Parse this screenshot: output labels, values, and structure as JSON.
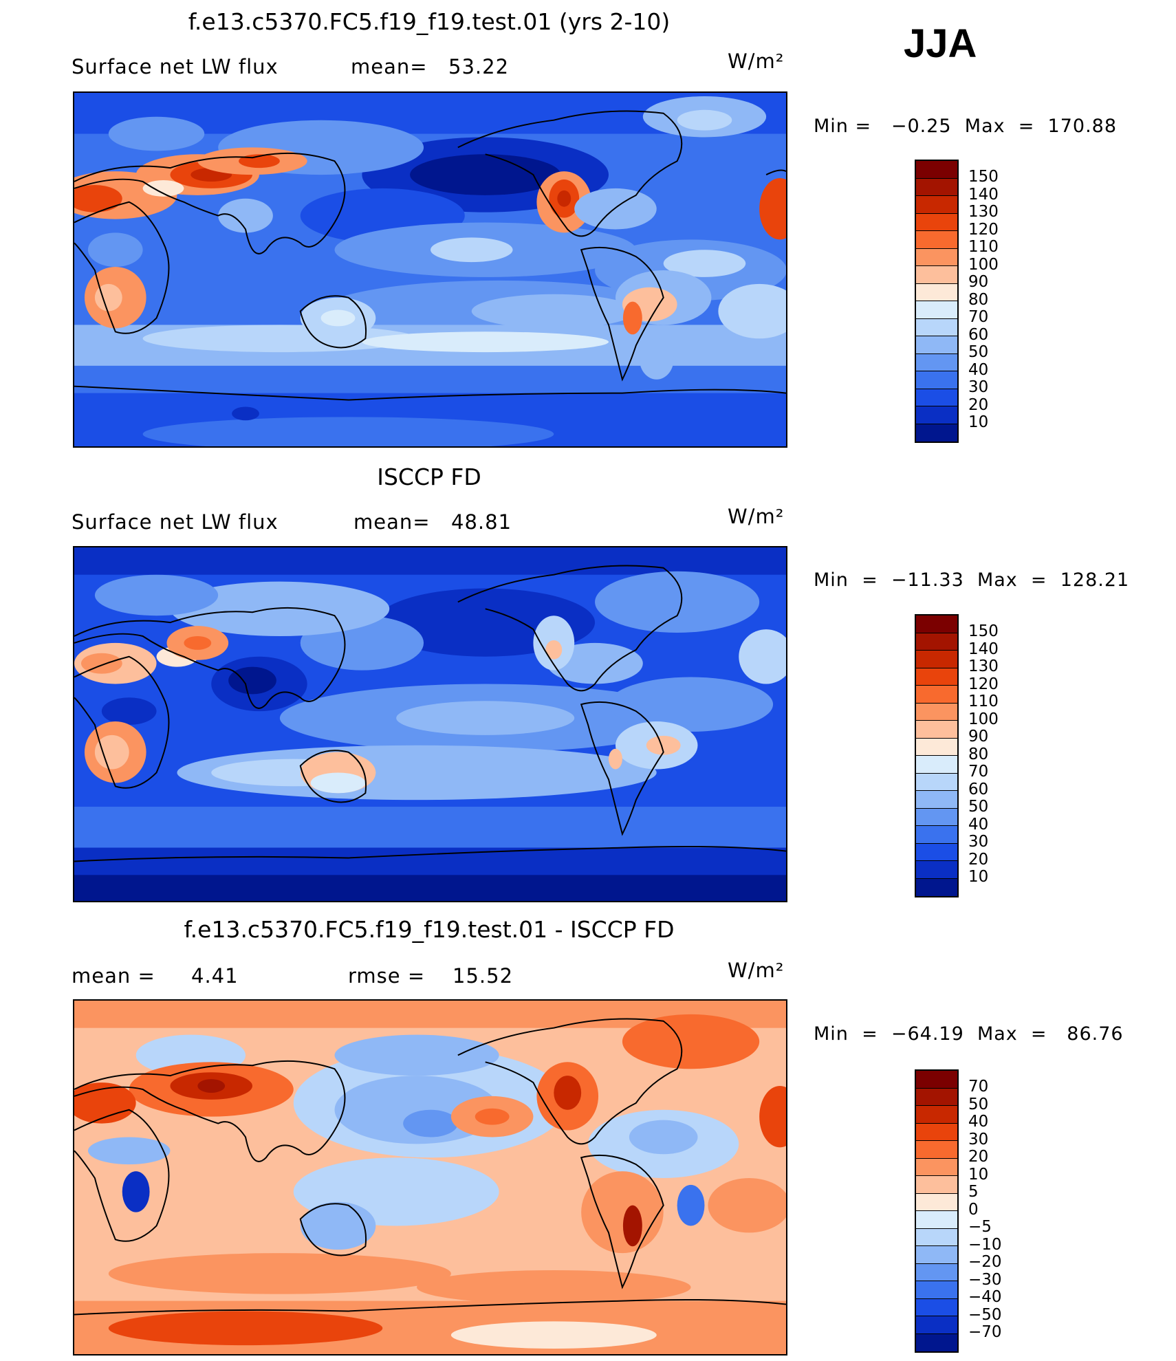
{
  "season": "JJA",
  "panels": [
    {
      "id": "model",
      "title": "f.e13.c5370.FC5.f19_f19.test.01 (yrs 2-10)",
      "left_label": "Surface net LW flux",
      "mid_label": "mean=",
      "mid_value": "53.22",
      "units": "W/m²",
      "minmax": "Min =   −0.25  Max  =  170.88",
      "levels": [
        "150",
        "140",
        "130",
        "120",
        "110",
        "100",
        "90",
        "80",
        "70",
        "60",
        "50",
        "40",
        "30",
        "20",
        "10"
      ],
      "colors": [
        "#7b0000",
        "#a31400",
        "#c82800",
        "#e9440c",
        "#f86a2e",
        "#fb9460",
        "#fdbf9c",
        "#fde9d8",
        "#d9ecfb",
        "#b8d6fa",
        "#8fb8f6",
        "#6396f2",
        "#3a72ee",
        "#1b4ee6",
        "#0a2fc4",
        "#00168e"
      ]
    },
    {
      "id": "obs",
      "title": "ISCCP FD",
      "left_label": "Surface net LW flux",
      "mid_label": "mean=",
      "mid_value": "48.81",
      "units": "W/m²",
      "minmax": "Min  =  −11.33  Max  =  128.21",
      "levels": [
        "150",
        "140",
        "130",
        "120",
        "110",
        "100",
        "90",
        "80",
        "70",
        "60",
        "50",
        "40",
        "30",
        "20",
        "10"
      ],
      "colors": [
        "#7b0000",
        "#a31400",
        "#c82800",
        "#e9440c",
        "#f86a2e",
        "#fb9460",
        "#fdbf9c",
        "#fde9d8",
        "#d9ecfb",
        "#b8d6fa",
        "#8fb8f6",
        "#6396f2",
        "#3a72ee",
        "#1b4ee6",
        "#0a2fc4",
        "#00168e"
      ]
    },
    {
      "id": "diff",
      "title": "f.e13.c5370.FC5.f19_f19.test.01 - ISCCP FD",
      "left_label": "mean =",
      "left_value": "4.41",
      "mid_label": "rmse =",
      "mid_value": "15.52",
      "units": "W/m²",
      "minmax": "Min  =  −64.19  Max  =   86.76",
      "levels": [
        "70",
        "50",
        "40",
        "30",
        "20",
        "10",
        "5",
        "0",
        "−5",
        "−10",
        "−20",
        "−30",
        "−40",
        "−50",
        "−70"
      ],
      "colors": [
        "#7b0000",
        "#a31400",
        "#c82800",
        "#e9440c",
        "#f86a2e",
        "#fb9460",
        "#fdbf9c",
        "#fde9d8",
        "#d9ecfb",
        "#b8d6fa",
        "#8fb8f6",
        "#6396f2",
        "#3a72ee",
        "#1b4ee6",
        "#0a2fc4",
        "#00168e"
      ]
    }
  ]
}
